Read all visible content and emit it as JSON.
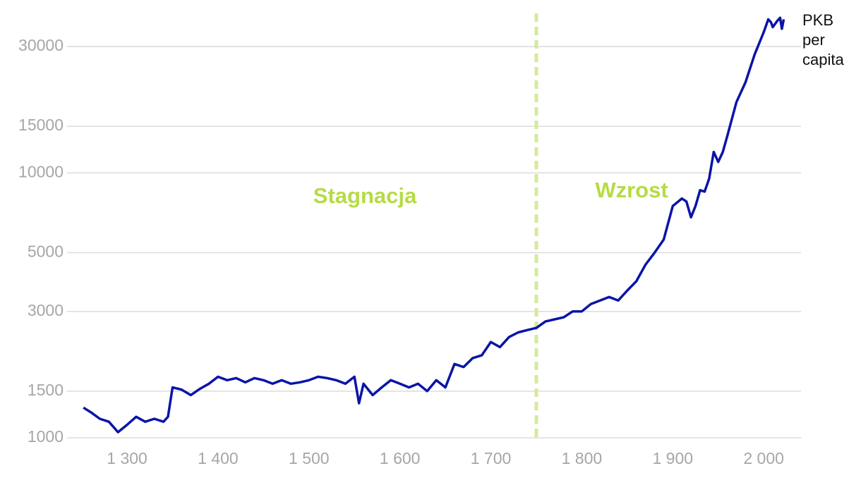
{
  "chart_data": {
    "type": "line",
    "log_y": true,
    "grid": true,
    "x": [
      1252,
      1260,
      1270,
      1280,
      1290,
      1300,
      1310,
      1320,
      1330,
      1340,
      1345,
      1350,
      1360,
      1370,
      1380,
      1390,
      1400,
      1410,
      1420,
      1430,
      1440,
      1450,
      1460,
      1470,
      1480,
      1490,
      1500,
      1510,
      1520,
      1530,
      1540,
      1550,
      1555,
      1560,
      1570,
      1580,
      1590,
      1600,
      1610,
      1620,
      1630,
      1640,
      1650,
      1660,
      1670,
      1680,
      1690,
      1700,
      1710,
      1720,
      1730,
      1740,
      1750,
      1760,
      1770,
      1780,
      1790,
      1800,
      1810,
      1820,
      1830,
      1840,
      1850,
      1860,
      1870,
      1880,
      1890,
      1900,
      1910,
      1915,
      1920,
      1925,
      1930,
      1935,
      1940,
      1945,
      1950,
      1955,
      1960,
      1970,
      1980,
      1990,
      2000,
      2005,
      2008,
      2010,
      2015,
      2018,
      2020,
      2022
    ],
    "series": [
      {
        "name": "PKB per capita",
        "color": "#0a14a8",
        "values": [
          1300,
          1250,
          1180,
          1150,
          1050,
          1120,
          1200,
          1150,
          1180,
          1150,
          1200,
          1550,
          1520,
          1450,
          1530,
          1600,
          1700,
          1650,
          1680,
          1620,
          1680,
          1650,
          1600,
          1650,
          1600,
          1620,
          1650,
          1700,
          1680,
          1650,
          1600,
          1700,
          1350,
          1600,
          1450,
          1550,
          1650,
          1600,
          1550,
          1600,
          1500,
          1650,
          1550,
          1900,
          1850,
          2000,
          2050,
          2300,
          2200,
          2400,
          2500,
          2550,
          2600,
          2750,
          2800,
          2850,
          3000,
          3000,
          3200,
          3300,
          3400,
          3300,
          3600,
          3900,
          4500,
          5000,
          5600,
          7500,
          8000,
          7800,
          6800,
          7500,
          8600,
          8500,
          9500,
          12000,
          11000,
          12000,
          13800,
          18500,
          22000,
          28000,
          34000,
          38000,
          37000,
          35500,
          37500,
          38500,
          35000,
          38000
        ]
      }
    ],
    "xlim": [
      1234,
      2041
    ],
    "xticks": [
      {
        "value": 1300,
        "label": "1 300"
      },
      {
        "value": 1400,
        "label": "1 400"
      },
      {
        "value": 1500,
        "label": "1 500"
      },
      {
        "value": 1600,
        "label": "1 600"
      },
      {
        "value": 1700,
        "label": "1 700"
      },
      {
        "value": 1800,
        "label": "1 800"
      },
      {
        "value": 1900,
        "label": "1 900"
      },
      {
        "value": 2000,
        "label": "2 000"
      }
    ],
    "ylim": [
      1000,
      40000
    ],
    "yticks": [
      1000,
      1500,
      3000,
      5000,
      10000,
      15000,
      30000
    ],
    "vline": {
      "x": 1750,
      "color": "#d4ea9a"
    },
    "annotations": [
      "Stagnacja",
      "Wzrost"
    ]
  }
}
